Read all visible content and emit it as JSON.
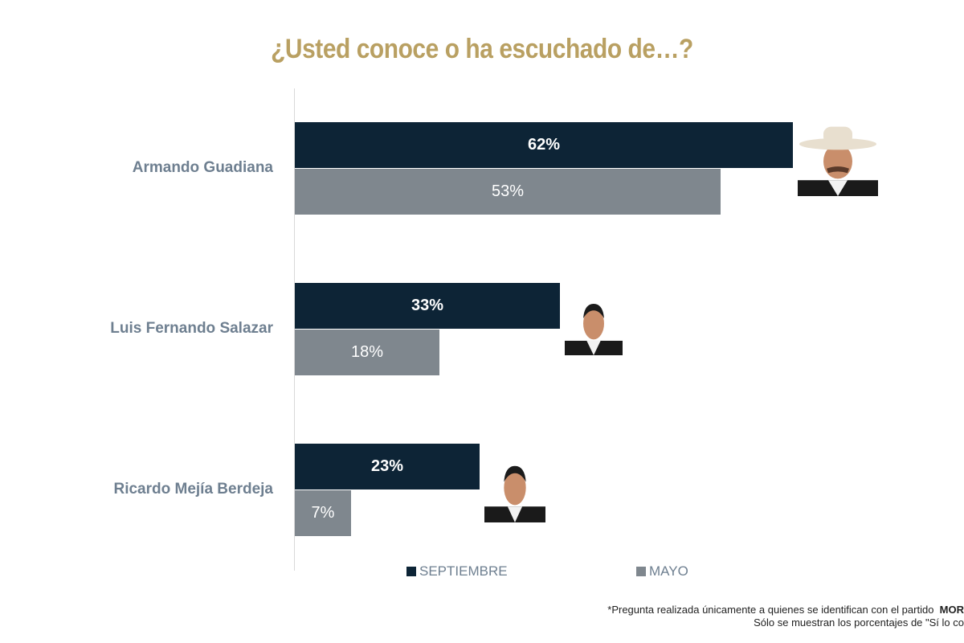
{
  "chart_data": {
    "type": "bar",
    "orientation": "horizontal",
    "title": "¿Usted conoce o ha escuchado de…?",
    "categories": [
      "Armando Guadiana",
      "Luis Fernando Salazar",
      "Ricardo Mejía Berdeja"
    ],
    "series": [
      {
        "name": "SEPTIEMBRE",
        "values": [
          62,
          33,
          23
        ],
        "labels": [
          "62%",
          "33%",
          "23%"
        ],
        "color": "#0d2436"
      },
      {
        "name": "MAYO",
        "values": [
          53,
          18,
          7
        ],
        "labels": [
          "53%",
          "18%",
          "7%"
        ],
        "color": "#7f878e"
      }
    ],
    "xlim": [
      0,
      100
    ],
    "grid": false,
    "legend": "bottom"
  },
  "footnote": {
    "line1": "*Pregunta realizada únicamente a quienes se identifican con el partido",
    "line1_bold": "MOR",
    "line2": "Sólo se muestran los porcentajes de \"Sí lo co"
  },
  "colors": {
    "title": "#b9a062",
    "labels": "#6e7f90"
  }
}
